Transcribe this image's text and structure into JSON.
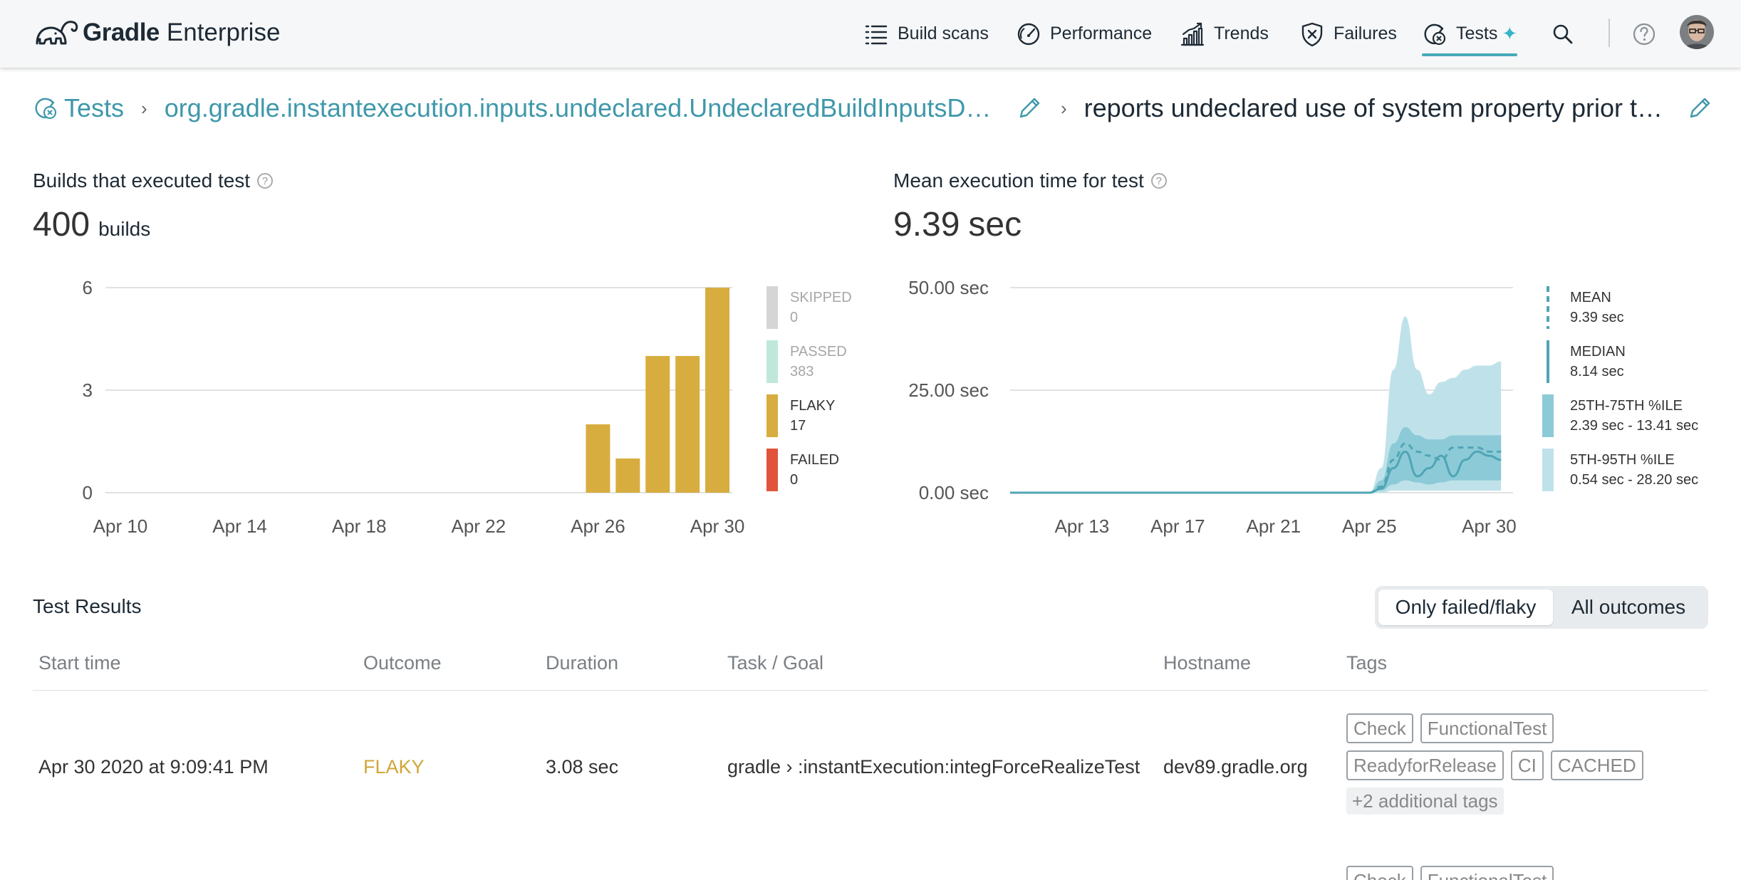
{
  "app": {
    "brand_bold": "Gradle",
    "brand_light": "Enterprise"
  },
  "nav": {
    "items": [
      {
        "label": "Build scans",
        "icon": "list-icon"
      },
      {
        "label": "Performance",
        "icon": "gauge-icon"
      },
      {
        "label": "Trends",
        "icon": "trends-icon"
      },
      {
        "label": "Failures",
        "icon": "shield-x-icon"
      },
      {
        "label": "Tests",
        "icon": "tests-icon",
        "active": true,
        "badge_icon": "sparkle-icon"
      }
    ],
    "search_icon": "search-icon",
    "help_icon": "help-icon",
    "avatar": "avatar"
  },
  "breadcrumb": {
    "root": "Tests",
    "class_name": "org.gradle.instantexecution.inputs.undeclared.UndeclaredBuildInputsDyna…",
    "test_name": "reports undeclared use of system property prior to t…"
  },
  "builds_block": {
    "title": "Builds that executed test",
    "count": "400",
    "unit": "builds"
  },
  "mean_block": {
    "title": "Mean execution time for test",
    "value": "9.39",
    "unit": "sec"
  },
  "chart_data": [
    {
      "type": "bar",
      "x": [
        "Apr 10",
        "Apr 11",
        "Apr 12",
        "Apr 13",
        "Apr 14",
        "Apr 15",
        "Apr 16",
        "Apr 17",
        "Apr 18",
        "Apr 19",
        "Apr 20",
        "Apr 21",
        "Apr 22",
        "Apr 23",
        "Apr 24",
        "Apr 25",
        "Apr 26",
        "Apr 27",
        "Apr 28",
        "Apr 29",
        "Apr 30"
      ],
      "x_ticks": [
        "Apr 10",
        "Apr 14",
        "Apr 18",
        "Apr 22",
        "Apr 26",
        "Apr 30"
      ],
      "series": [
        {
          "name": "FLAKY",
          "values": [
            0,
            0,
            0,
            0,
            0,
            0,
            0,
            0,
            0,
            0,
            0,
            0,
            0,
            0,
            0,
            0,
            2,
            1,
            4,
            4,
            6
          ],
          "color": "#d8ad3f"
        }
      ],
      "y_ticks": [
        "0",
        "3",
        "6"
      ],
      "ylim": [
        0,
        6
      ],
      "legend": [
        {
          "label": "SKIPPED",
          "value": "0",
          "color": "#d5d5d5",
          "muted": true
        },
        {
          "label": "PASSED",
          "value": "383",
          "color": "#bfe8db",
          "muted": true
        },
        {
          "label": "FLAKY",
          "value": "17",
          "color": "#d8ad3f",
          "muted": false
        },
        {
          "label": "FAILED",
          "value": "0",
          "color": "#e0543b",
          "muted": false
        }
      ],
      "legend_position": "right",
      "grid": true
    },
    {
      "type": "area",
      "x_days": [
        10,
        11,
        12,
        13,
        14,
        15,
        16,
        17,
        18,
        19,
        20,
        21,
        22,
        23,
        24,
        25,
        25.5,
        26,
        26.5,
        27,
        27.5,
        28,
        28.5,
        29,
        29.5,
        30,
        30.5
      ],
      "x_ticks": [
        "Apr 13",
        "Apr 17",
        "Apr 21",
        "Apr 25",
        "Apr 30"
      ],
      "series": [
        {
          "name": "MEAN",
          "values": [
            0,
            0,
            0,
            0,
            0,
            0,
            0,
            0,
            0,
            0,
            0,
            0,
            0,
            0,
            0,
            0,
            1.5,
            8,
            12,
            10,
            9,
            8,
            11,
            11,
            11,
            10,
            10
          ],
          "style": "dashed",
          "color": "#4fa5b5"
        },
        {
          "name": "MEDIAN",
          "values": [
            0,
            0,
            0,
            0,
            0,
            0,
            0,
            0,
            0,
            0,
            0,
            0,
            0,
            0,
            0,
            0,
            1,
            6,
            10,
            4,
            6,
            9,
            4,
            8,
            10,
            9,
            8
          ],
          "style": "solid",
          "color": "#4fa5b5"
        },
        {
          "name": "25TH-75TH %ILE",
          "low": [
            0,
            0,
            0,
            0,
            0,
            0,
            0,
            0,
            0,
            0,
            0,
            0,
            0,
            0,
            0,
            0,
            0.5,
            2,
            3,
            2.5,
            2,
            2.5,
            3,
            3,
            3,
            3,
            3
          ],
          "high": [
            0,
            0,
            0,
            0,
            0,
            0,
            0,
            0,
            0,
            0,
            0,
            0,
            0,
            0,
            0,
            0,
            3,
            12,
            16,
            14,
            13,
            13,
            14,
            14,
            14,
            14,
            14
          ],
          "color": "#8dcad7"
        },
        {
          "name": "5TH-95TH %ILE",
          "low": [
            0,
            0,
            0,
            0,
            0,
            0,
            0,
            0,
            0,
            0,
            0,
            0,
            0,
            0,
            0,
            0,
            0,
            0.5,
            0.5,
            0.5,
            0.5,
            0.5,
            0.5,
            0.5,
            0.5,
            0.5,
            0.5
          ],
          "high": [
            0,
            0,
            0,
            0,
            0,
            0,
            0,
            0,
            0,
            0,
            0,
            0,
            0,
            0,
            0,
            0,
            6,
            30,
            43,
            30,
            24,
            27,
            28,
            30,
            31,
            31,
            32
          ],
          "color": "#bfe2ea"
        }
      ],
      "y_ticks": [
        "0.00 sec",
        "25.00 sec",
        "50.00 sec"
      ],
      "ylim": [
        0,
        50
      ],
      "legend": [
        {
          "label": "MEAN",
          "value": "9.39 sec",
          "style": "dashed",
          "color": "#4fa5b5"
        },
        {
          "label": "MEDIAN",
          "value": "8.14 sec",
          "style": "solid",
          "color": "#4fa5b5"
        },
        {
          "label": "25TH-75TH %ILE",
          "value": "2.39 sec - 13.41 sec",
          "style": "band",
          "color": "#8dcad7"
        },
        {
          "label": "5TH-95TH %ILE",
          "value": "0.54 sec - 28.20 sec",
          "style": "band",
          "color": "#bfe2ea"
        }
      ],
      "legend_position": "right",
      "grid": true
    }
  ],
  "results": {
    "title": "Test Results",
    "filter": {
      "selected": "Only failed/flaky",
      "other": "All outcomes"
    },
    "columns": [
      "Start time",
      "Outcome",
      "Duration",
      "Task / Goal",
      "Hostname",
      "Tags"
    ],
    "rows": [
      {
        "start_time": "Apr 30 2020 at 9:09:41 PM",
        "outcome": "FLAKY",
        "duration": "3.08 sec",
        "task": "gradle › :instantExecution:integForceRealizeTest",
        "hostname": "dev89.gradle.org",
        "tags_row1": [
          "Check",
          "FunctionalTest"
        ],
        "tags_row2": [
          "ReadyforRelease",
          "CI",
          "CACHED"
        ],
        "more_tags": "+2 additional tags"
      }
    ],
    "next_row_tags": [
      "Check",
      "FunctionalTest"
    ]
  },
  "colors": {
    "accent": "#45a9b8",
    "link": "#3f98aa",
    "flaky": "#d0a638"
  }
}
